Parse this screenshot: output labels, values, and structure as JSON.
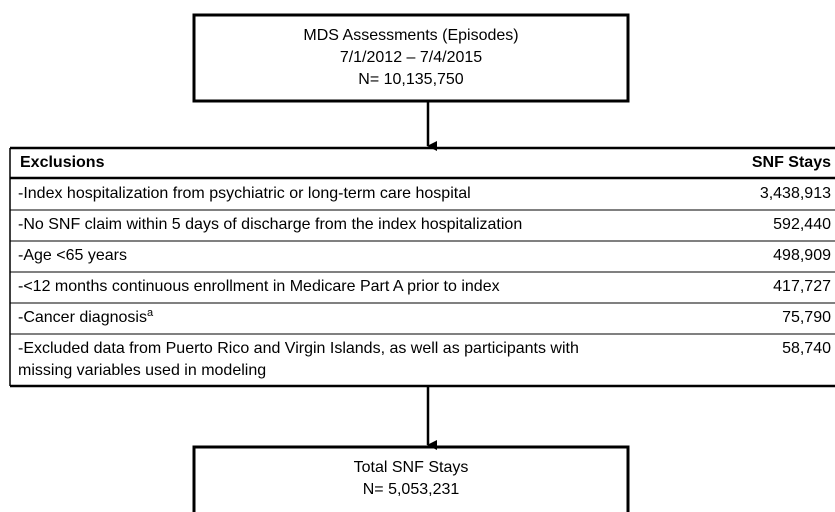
{
  "top_box": {
    "lines": [
      "MDS Assessments (Episodes)",
      "7/1/2012 – 7/4/2015",
      "N= 10,135,750"
    ]
  },
  "table": {
    "headers": [
      "Exclusions",
      "SNF Stays"
    ],
    "rows": [
      {
        "text": [
          "-Index hospitalization from psychiatric or long-term care hospital"
        ],
        "stays": "3,438,913"
      },
      {
        "text": [
          "-No SNF claim within 5 days of discharge from the index hospitalization"
        ],
        "stays": "592,440"
      },
      {
        "text": [
          "-Age <65 years"
        ],
        "stays": "498,909"
      },
      {
        "text": [
          "-<12 months continuous enrollment in Medicare Part A prior to index"
        ],
        "stays": "417,727"
      },
      {
        "text": [
          "-Cancer diagnosis"
        ],
        "note": "a",
        "stays": "75,790"
      },
      {
        "text": [
          "-Excluded data from Puerto Rico and Virgin Islands, as well as participants with",
          "missing variables used in modeling"
        ],
        "stays": "58,740"
      }
    ]
  },
  "bottom_box": {
    "lines": [
      "Total SNF Stays",
      "N= 5,053,231"
    ]
  }
}
